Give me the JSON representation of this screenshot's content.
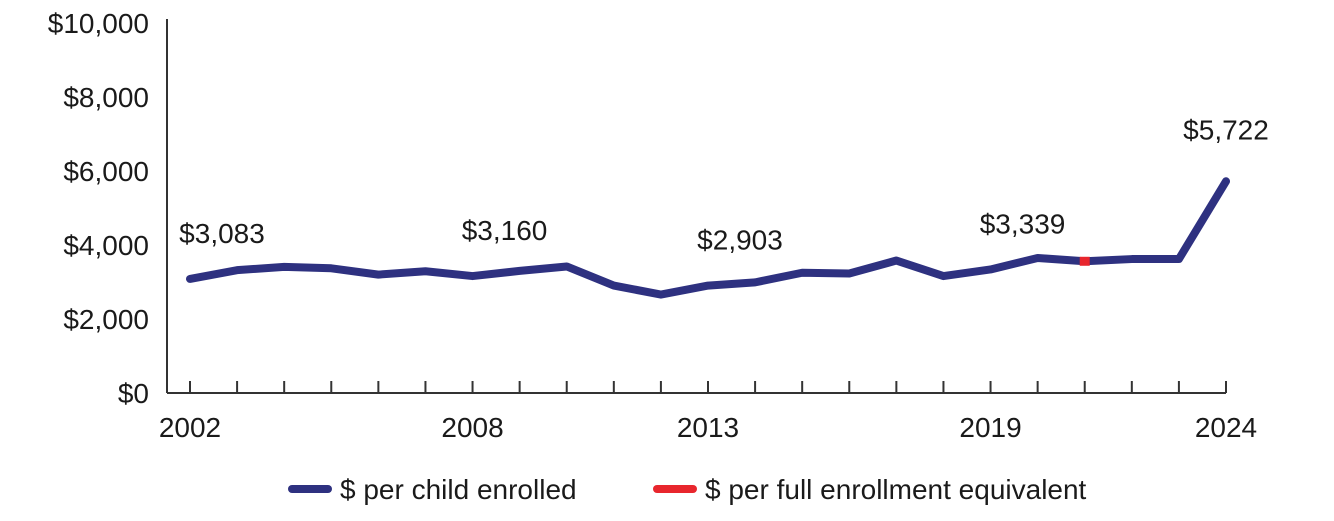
{
  "chart_data": {
    "type": "line",
    "x": [
      2002,
      2003,
      2004,
      2005,
      2006,
      2007,
      2008,
      2009,
      2010,
      2011,
      2012,
      2013,
      2014,
      2015,
      2016,
      2017,
      2018,
      2019,
      2020,
      2021,
      2022,
      2023,
      2024
    ],
    "series": [
      {
        "name": "$ per child enrolled",
        "color": "#2e3180",
        "values": [
          3083,
          3320,
          3410,
          3370,
          3200,
          3290,
          3160,
          3300,
          3420,
          2903,
          2660,
          2903,
          2990,
          3250,
          3230,
          3580,
          3160,
          3339,
          3650,
          3560,
          3620,
          3620,
          5722
        ]
      },
      {
        "name": "$ per full enrollment equivalent",
        "color": "#e8262d",
        "values": [
          null,
          null,
          null,
          null,
          null,
          null,
          null,
          null,
          null,
          null,
          null,
          null,
          null,
          null,
          null,
          null,
          null,
          null,
          null,
          3560,
          null,
          null,
          null
        ]
      }
    ],
    "ylim": [
      0,
      10000
    ],
    "y_ticks": [
      "$0",
      "$2,000",
      "$4,000",
      "$6,000",
      "$8,000",
      "$10,000"
    ],
    "y_tick_values": [
      0,
      2000,
      4000,
      6000,
      8000,
      10000
    ],
    "x_tick_labels": [
      {
        "x": 2002,
        "label": "2002"
      },
      {
        "x": 2008,
        "label": "2008"
      },
      {
        "x": 2013,
        "label": "2013"
      },
      {
        "x": 2019,
        "label": "2019"
      },
      {
        "x": 2024,
        "label": "2024"
      }
    ],
    "data_labels": [
      {
        "x": 2002,
        "value": 3083,
        "text": "$3,083"
      },
      {
        "x": 2008,
        "value": 3160,
        "text": "$3,160"
      },
      {
        "x": 2013,
        "value": 2903,
        "text": "$2,903"
      },
      {
        "x": 2019,
        "value": 3339,
        "text": "$3,339"
      },
      {
        "x": 2024,
        "value": 5722,
        "text": "$5,722"
      }
    ],
    "title": "",
    "xlabel": "",
    "ylabel": "",
    "grid": false,
    "legend_position": "bottom"
  }
}
